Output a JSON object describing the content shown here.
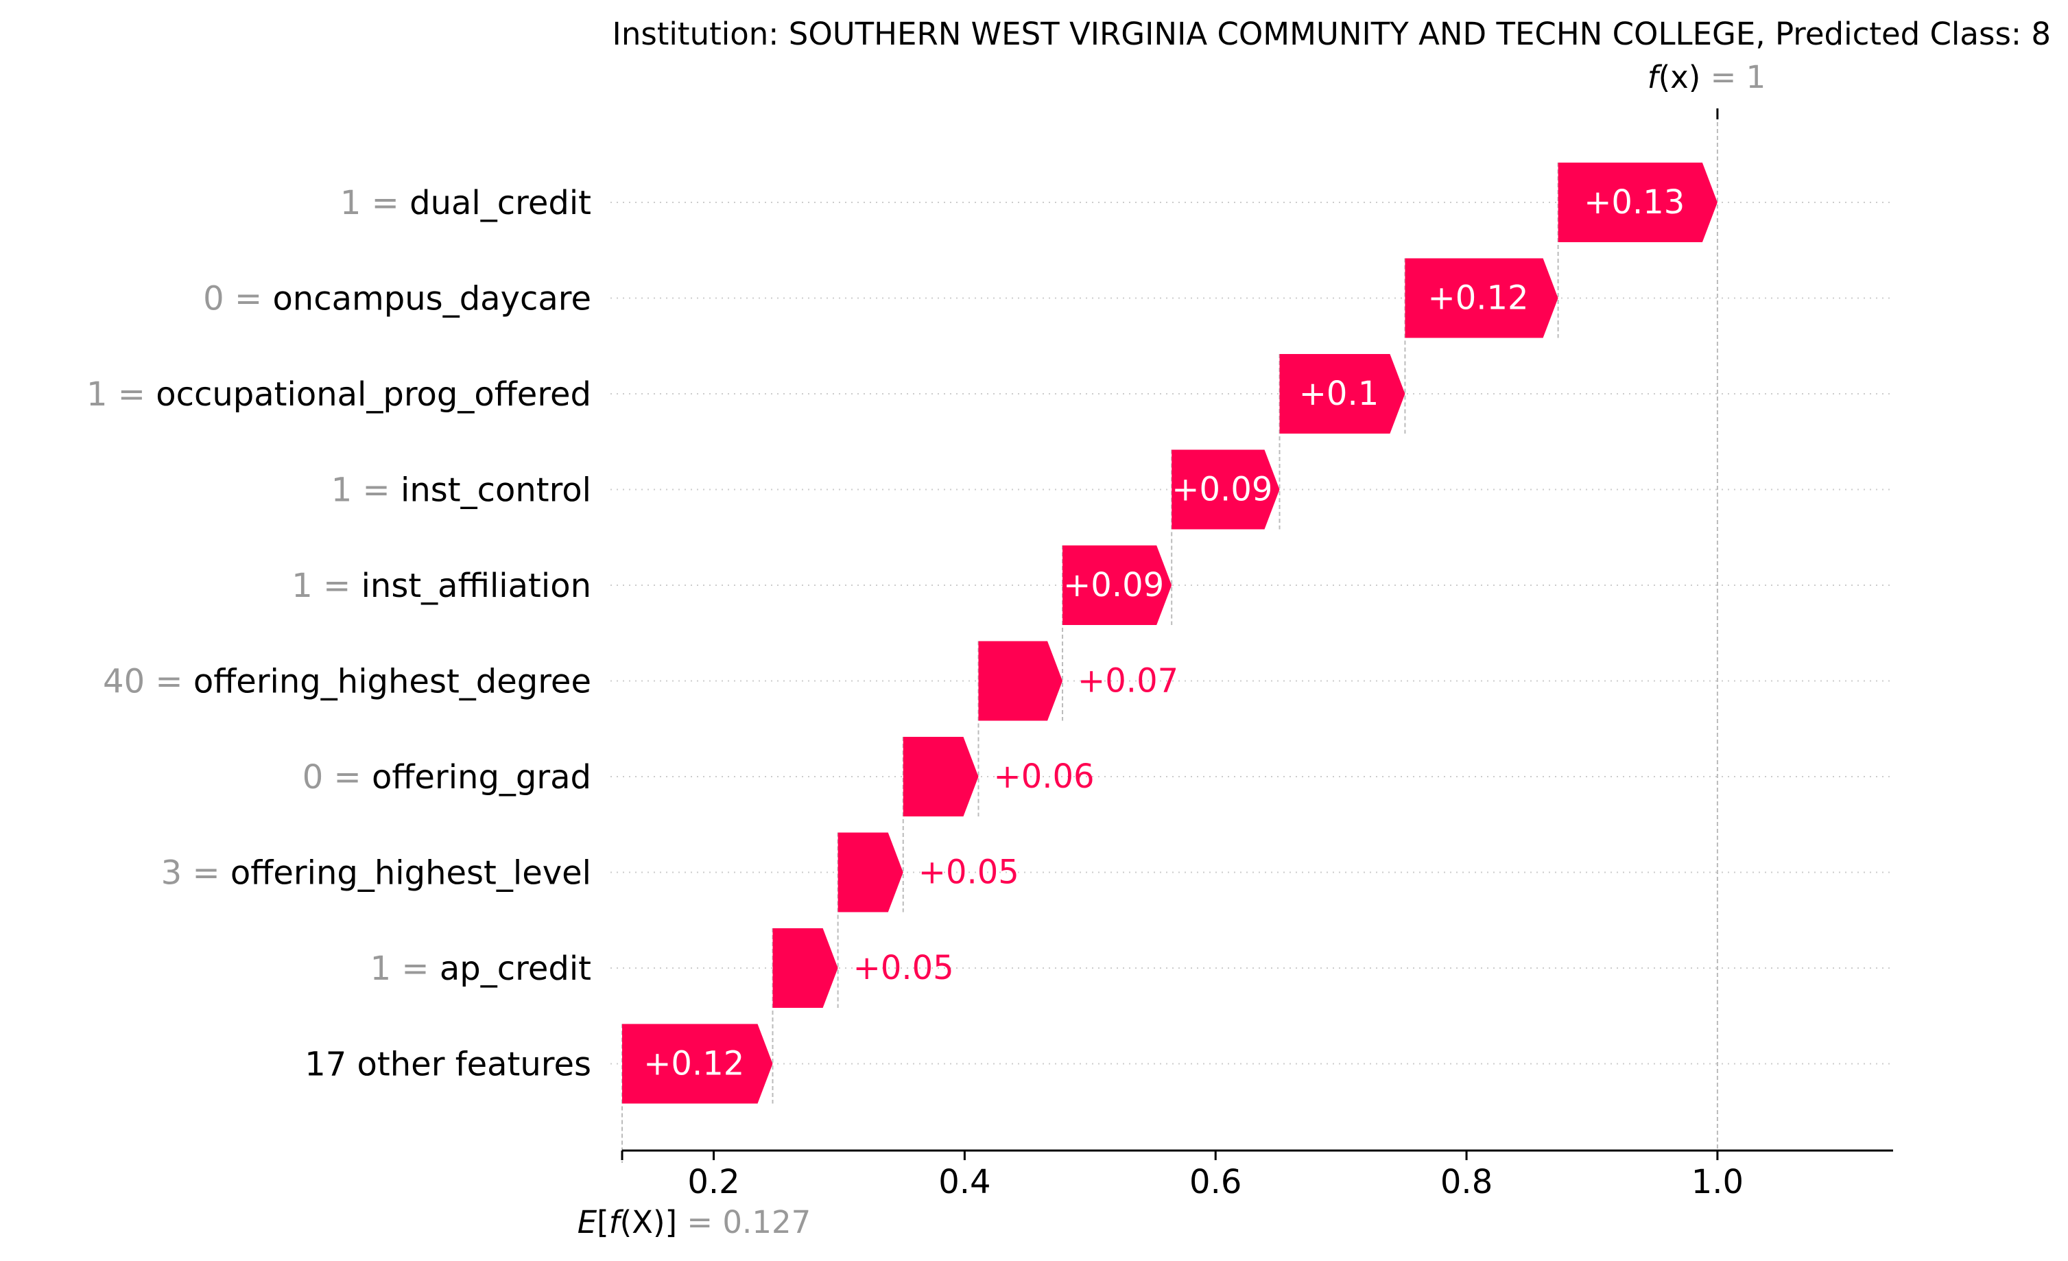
{
  "chart_data": {
    "type": "waterfall",
    "title": "Institution: SOUTHERN WEST VIRGINIA COMMUNITY AND TECHN COLLEGE, Predicted Class: 8",
    "fx": {
      "italic": "f",
      "paren": "(x)",
      "eq": " = ",
      "value": "1",
      "x": 1.0
    },
    "base": {
      "italic_e": "E",
      "bracket_open": "[",
      "italic_f": "f",
      "paren": "(X)",
      "bracket_close": "]",
      "eq": " = ",
      "value": "0.127",
      "x": 0.127
    },
    "xlim": [
      0.127,
      1.14
    ],
    "xticks": [
      0.2,
      0.4,
      0.6,
      0.8,
      1.0
    ],
    "xtick_labels": [
      "0.2",
      "0.4",
      "0.6",
      "0.8",
      "1.0"
    ],
    "grid": "horizontal dotted",
    "features": [
      {
        "value": "1",
        "name": "dual_credit",
        "start": 0.873,
        "end": 1.0,
        "label": "+0.13"
      },
      {
        "value": "0",
        "name": "oncampus_daycare",
        "start": 0.751,
        "end": 0.873,
        "label": "+0.12"
      },
      {
        "value": "1",
        "name": "occupational_prog_offered",
        "start": 0.651,
        "end": 0.751,
        "label": "+0.1"
      },
      {
        "value": "1",
        "name": "inst_control",
        "start": 0.565,
        "end": 0.651,
        "label": "+0.09"
      },
      {
        "value": "1",
        "name": "inst_affiliation",
        "start": 0.478,
        "end": 0.565,
        "label": "+0.09"
      },
      {
        "value": "40",
        "name": "offering_highest_degree",
        "start": 0.411,
        "end": 0.478,
        "label": "+0.07"
      },
      {
        "value": "0",
        "name": "offering_grad",
        "start": 0.351,
        "end": 0.411,
        "label": "+0.06"
      },
      {
        "value": "3",
        "name": "offering_highest_level",
        "start": 0.299,
        "end": 0.351,
        "label": "+0.05"
      },
      {
        "value": "1",
        "name": "ap_credit",
        "start": 0.247,
        "end": 0.299,
        "label": "+0.05"
      },
      {
        "value": "",
        "name": "17 other features",
        "start": 0.127,
        "end": 0.247,
        "label": "+0.12"
      }
    ],
    "colors": {
      "positive": "#ff0051",
      "bar_text": "#ffffff",
      "label_outside": "#ff0051",
      "feature_name": "#000000",
      "feature_value": "#999999",
      "connector": "#bbbbbb",
      "grid": "#cccccc",
      "axis": "#000000"
    }
  }
}
